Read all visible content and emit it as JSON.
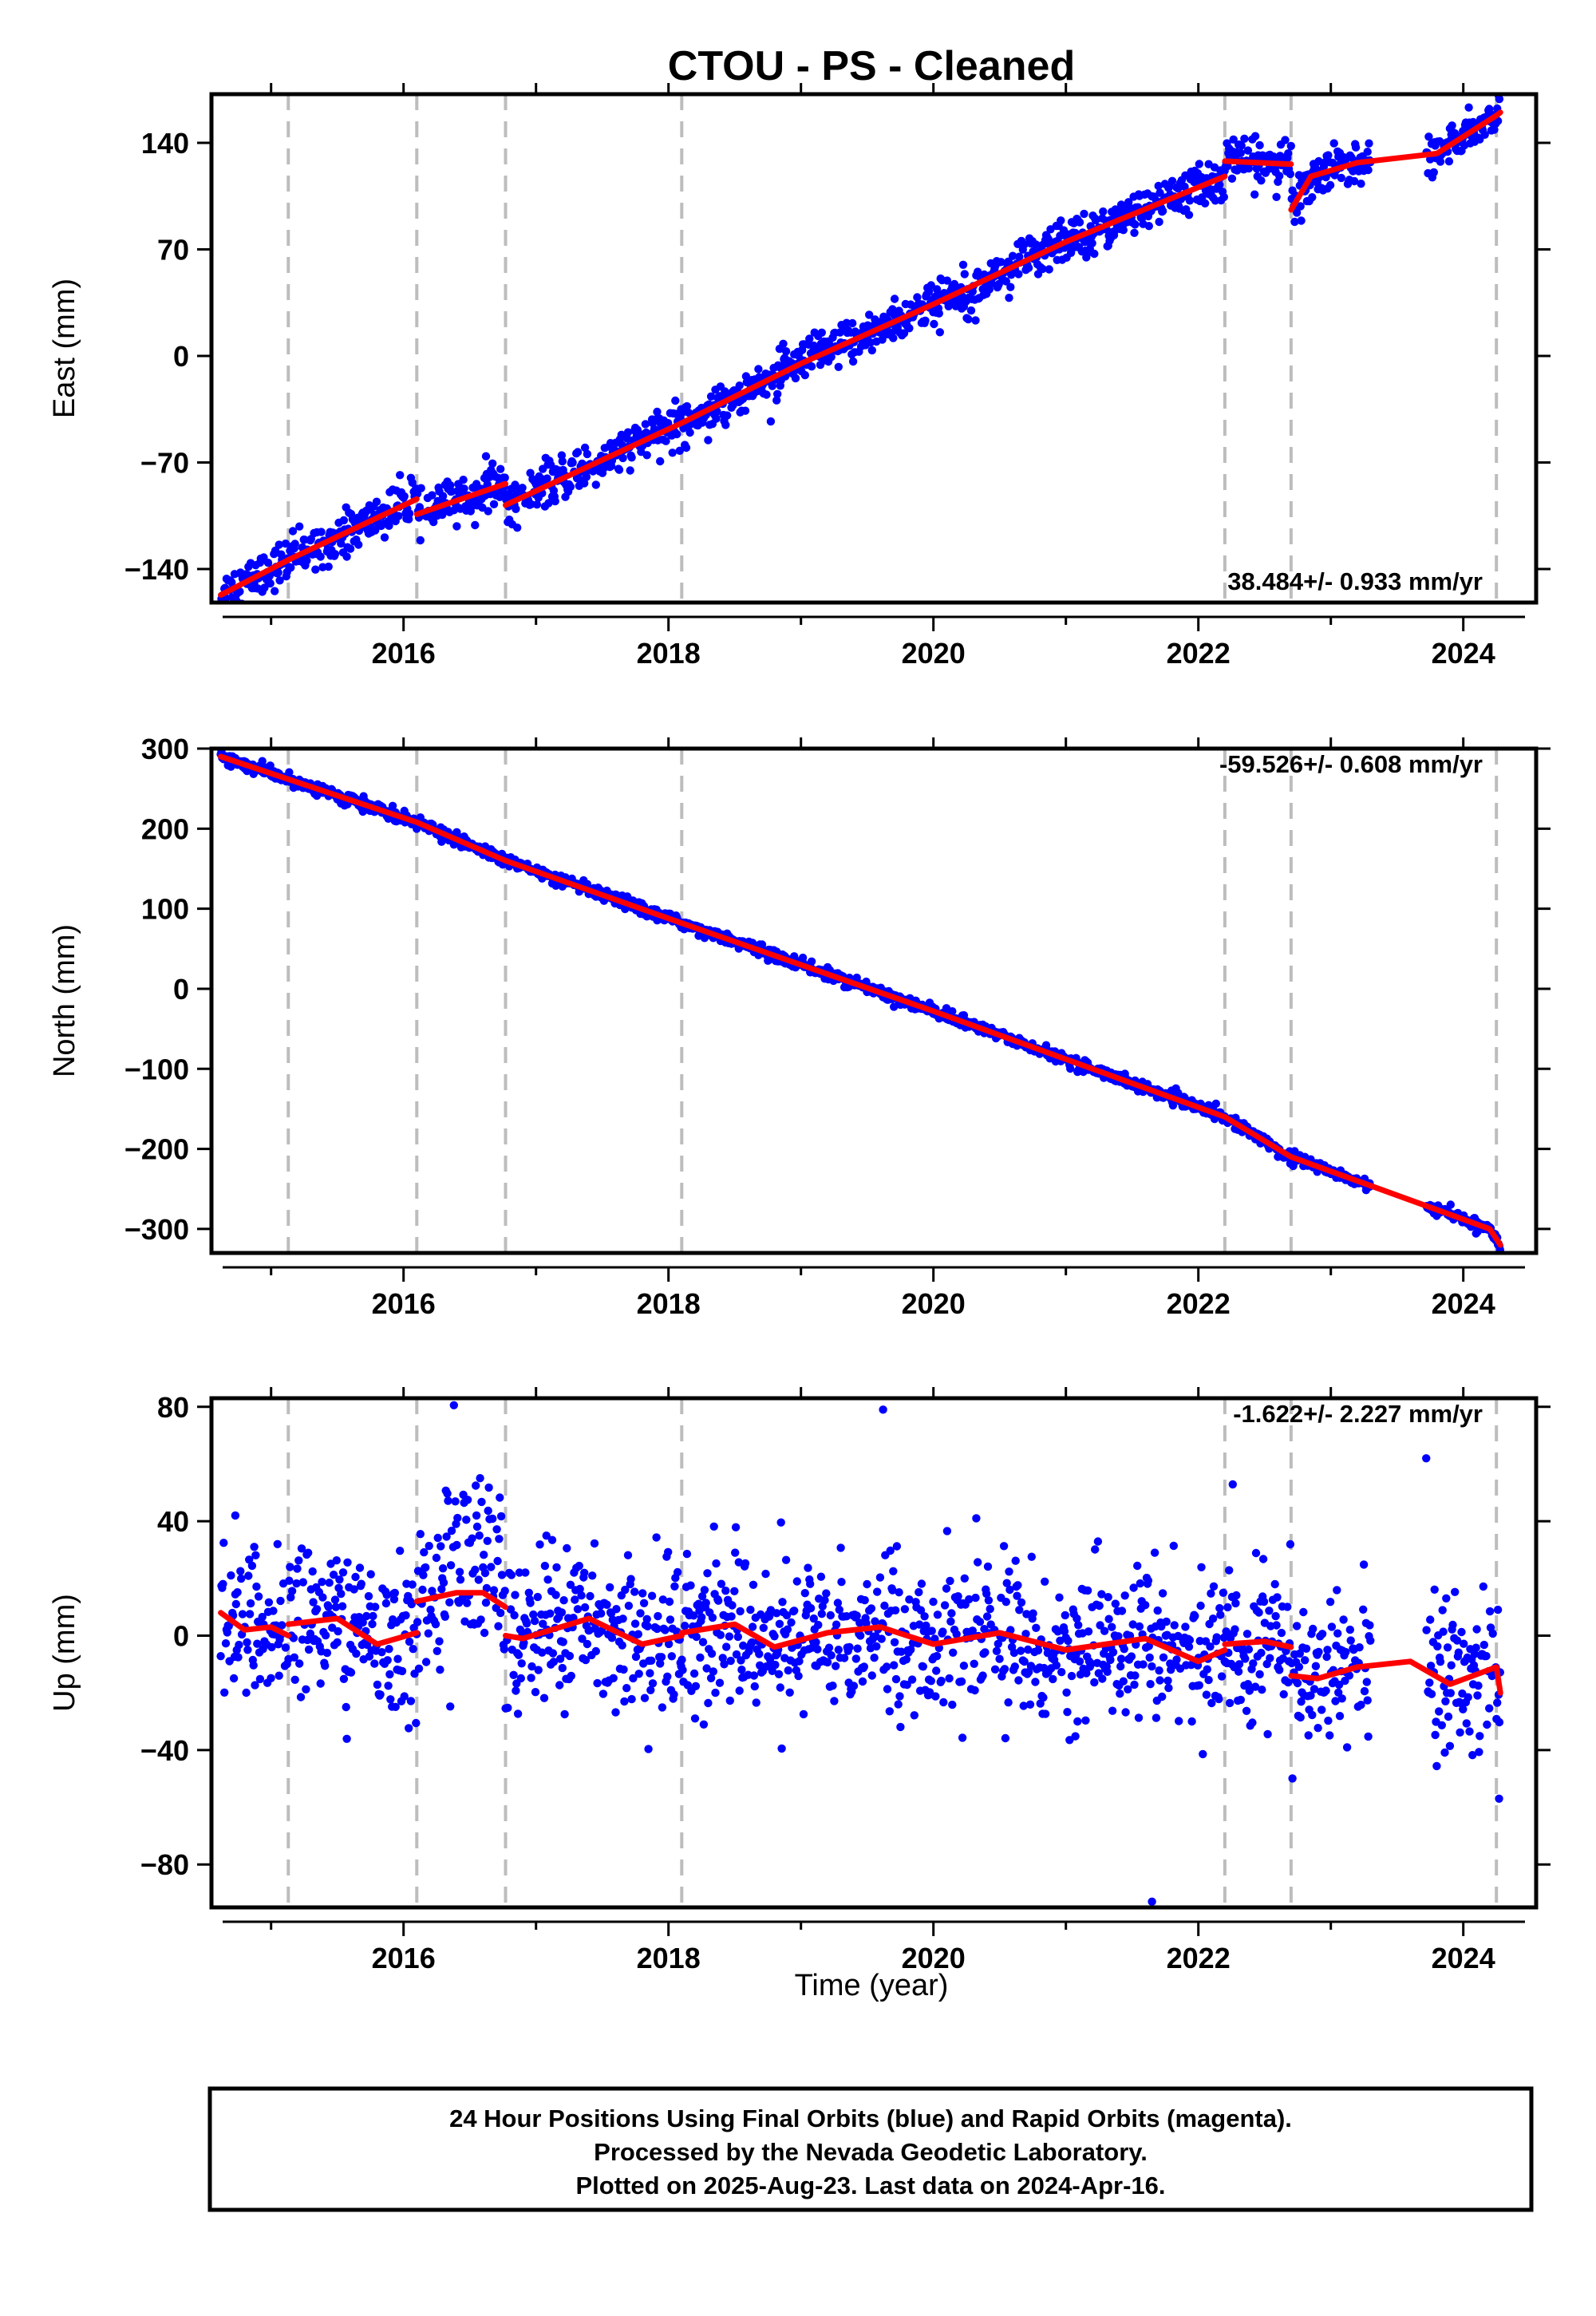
{
  "chart_data": [
    {
      "type": "scatter",
      "title": "CTOU  - PS - Cleaned",
      "xlabel": "",
      "ylabel": "East (mm)",
      "xlim": [
        2014.55,
        2024.55
      ],
      "ylim": [
        -162,
        172
      ],
      "yticks": [
        -140,
        -70,
        0,
        70,
        140
      ],
      "xticks": [
        2016,
        2018,
        2020,
        2022,
        2024
      ],
      "grid": false,
      "annotation": "38.484+/- 0.933 mm/yr",
      "annotation_position": "bottom-right",
      "breaks": [
        2015.13,
        2016.1,
        2016.77,
        2018.1,
        2022.2,
        2022.7,
        2024.25
      ],
      "trend_segments": [
        {
          "x": [
            2014.62,
            2015.13,
            2016.1
          ],
          "y": [
            -157,
            -134,
            -94
          ]
        },
        {
          "x": [
            2016.1,
            2016.77
          ],
          "y": [
            -104,
            -84
          ]
        },
        {
          "x": [
            2016.77,
            2018.1,
            2019.0,
            2020.0,
            2021.0,
            2022.2
          ],
          "y": [
            -98,
            -44,
            -5,
            34,
            75,
            118
          ]
        },
        {
          "x": [
            2022.2,
            2022.7
          ],
          "y": [
            128,
            126
          ]
        },
        {
          "x": [
            2022.7,
            2022.85,
            2023.2,
            2023.8,
            2024.25,
            2024.28
          ],
          "y": [
            96,
            118,
            127,
            133,
            158,
            160
          ]
        }
      ],
      "series": [
        {
          "name": "Final Orbits",
          "color": "#0000ff",
          "noise": 7.0,
          "gap": [
            2023.3,
            2023.72
          ]
        },
        {
          "name": "Model",
          "color": "#ff0000"
        }
      ]
    },
    {
      "type": "scatter",
      "title": "",
      "xlabel": "",
      "ylabel": "North (mm)",
      "xlim": [
        2014.55,
        2024.55
      ],
      "ylim": [
        -330,
        300
      ],
      "yticks": [
        -300,
        -200,
        -100,
        0,
        100,
        200,
        300
      ],
      "xticks": [
        2016,
        2018,
        2020,
        2022,
        2024
      ],
      "grid": false,
      "annotation": "-59.526+/- 0.608 mm/yr",
      "annotation_position": "top-right",
      "breaks": [
        2015.13,
        2016.1,
        2016.77,
        2018.1,
        2022.2,
        2022.7,
        2024.25
      ],
      "trend_segments": [
        {
          "x": [
            2014.62,
            2016.1,
            2016.77,
            2018.1,
            2020.0,
            2022.2,
            2022.7,
            2024.2,
            2024.28
          ],
          "y": [
            290,
            208,
            160,
            82,
            -28,
            -160,
            -210,
            -300,
            -320
          ]
        }
      ],
      "series": [
        {
          "name": "Final Orbits",
          "color": "#0000ff",
          "noise": 3.5,
          "gap": [
            2023.3,
            2023.72
          ]
        },
        {
          "name": "Model",
          "color": "#ff0000"
        }
      ]
    },
    {
      "type": "scatter",
      "title": "",
      "xlabel": "Time (year)",
      "ylabel": "Up (mm)",
      "xlim": [
        2014.55,
        2024.55
      ],
      "ylim": [
        -95,
        83
      ],
      "yticks": [
        -80,
        -40,
        0,
        40,
        80
      ],
      "xticks": [
        2016,
        2018,
        2020,
        2022,
        2024
      ],
      "grid": false,
      "annotation": "-1.622+/- 2.227 mm/yr",
      "annotation_position": "top-right",
      "breaks": [
        2015.13,
        2016.1,
        2016.77,
        2018.1,
        2022.2,
        2022.7,
        2024.25
      ],
      "trend_segments": [
        {
          "x": [
            2014.62,
            2014.8,
            2015.0,
            2015.13
          ],
          "y": [
            8,
            2,
            3,
            0
          ]
        },
        {
          "x": [
            2015.13,
            2015.5,
            2015.8,
            2016.1
          ],
          "y": [
            4,
            6,
            -3,
            1
          ]
        },
        {
          "x": [
            2016.1,
            2016.4,
            2016.6,
            2016.77
          ],
          "y": [
            12,
            15,
            15,
            10
          ]
        },
        {
          "x": [
            2016.77,
            2016.9,
            2017.4,
            2017.8,
            2018.1
          ],
          "y": [
            0,
            -1,
            6,
            -3,
            0
          ]
        },
        {
          "x": [
            2018.1,
            2018.5,
            2018.8,
            2019.2,
            2019.6,
            2020.0,
            2020.5,
            2021.0,
            2021.6,
            2022.0,
            2022.2
          ],
          "y": [
            1,
            4,
            -4,
            1,
            3,
            -3,
            1,
            -5,
            -1,
            -9,
            -5
          ]
        },
        {
          "x": [
            2022.2,
            2022.5,
            2022.7
          ],
          "y": [
            -3,
            -2,
            -4
          ]
        },
        {
          "x": [
            2022.7,
            2022.9,
            2023.2,
            2023.6,
            2023.9,
            2024.25,
            2024.28
          ],
          "y": [
            -14,
            -15,
            -11,
            -9,
            -17,
            -11,
            -20
          ]
        }
      ],
      "outliers": [
        {
          "x": 2019.62,
          "y": 79
        },
        {
          "x": 2021.65,
          "y": -93
        },
        {
          "x": 2023.72,
          "y": 62
        },
        {
          "x": 2014.73,
          "y": 42
        },
        {
          "x": 2024.27,
          "y": -57
        }
      ],
      "series": [
        {
          "name": "Final Orbits",
          "color": "#0000ff",
          "noise": 13,
          "gap": [
            2023.3,
            2023.72
          ]
        },
        {
          "name": "Model",
          "color": "#ff0000"
        }
      ]
    }
  ],
  "footer": {
    "line1": "24 Hour Positions Using Final Orbits (blue) and Rapid Orbits (magenta).",
    "line2": "Processed by the Nevada Geodetic Laboratory.",
    "line3": "Plotted on 2025-Aug-23. Last data on 2024-Apr-16."
  }
}
